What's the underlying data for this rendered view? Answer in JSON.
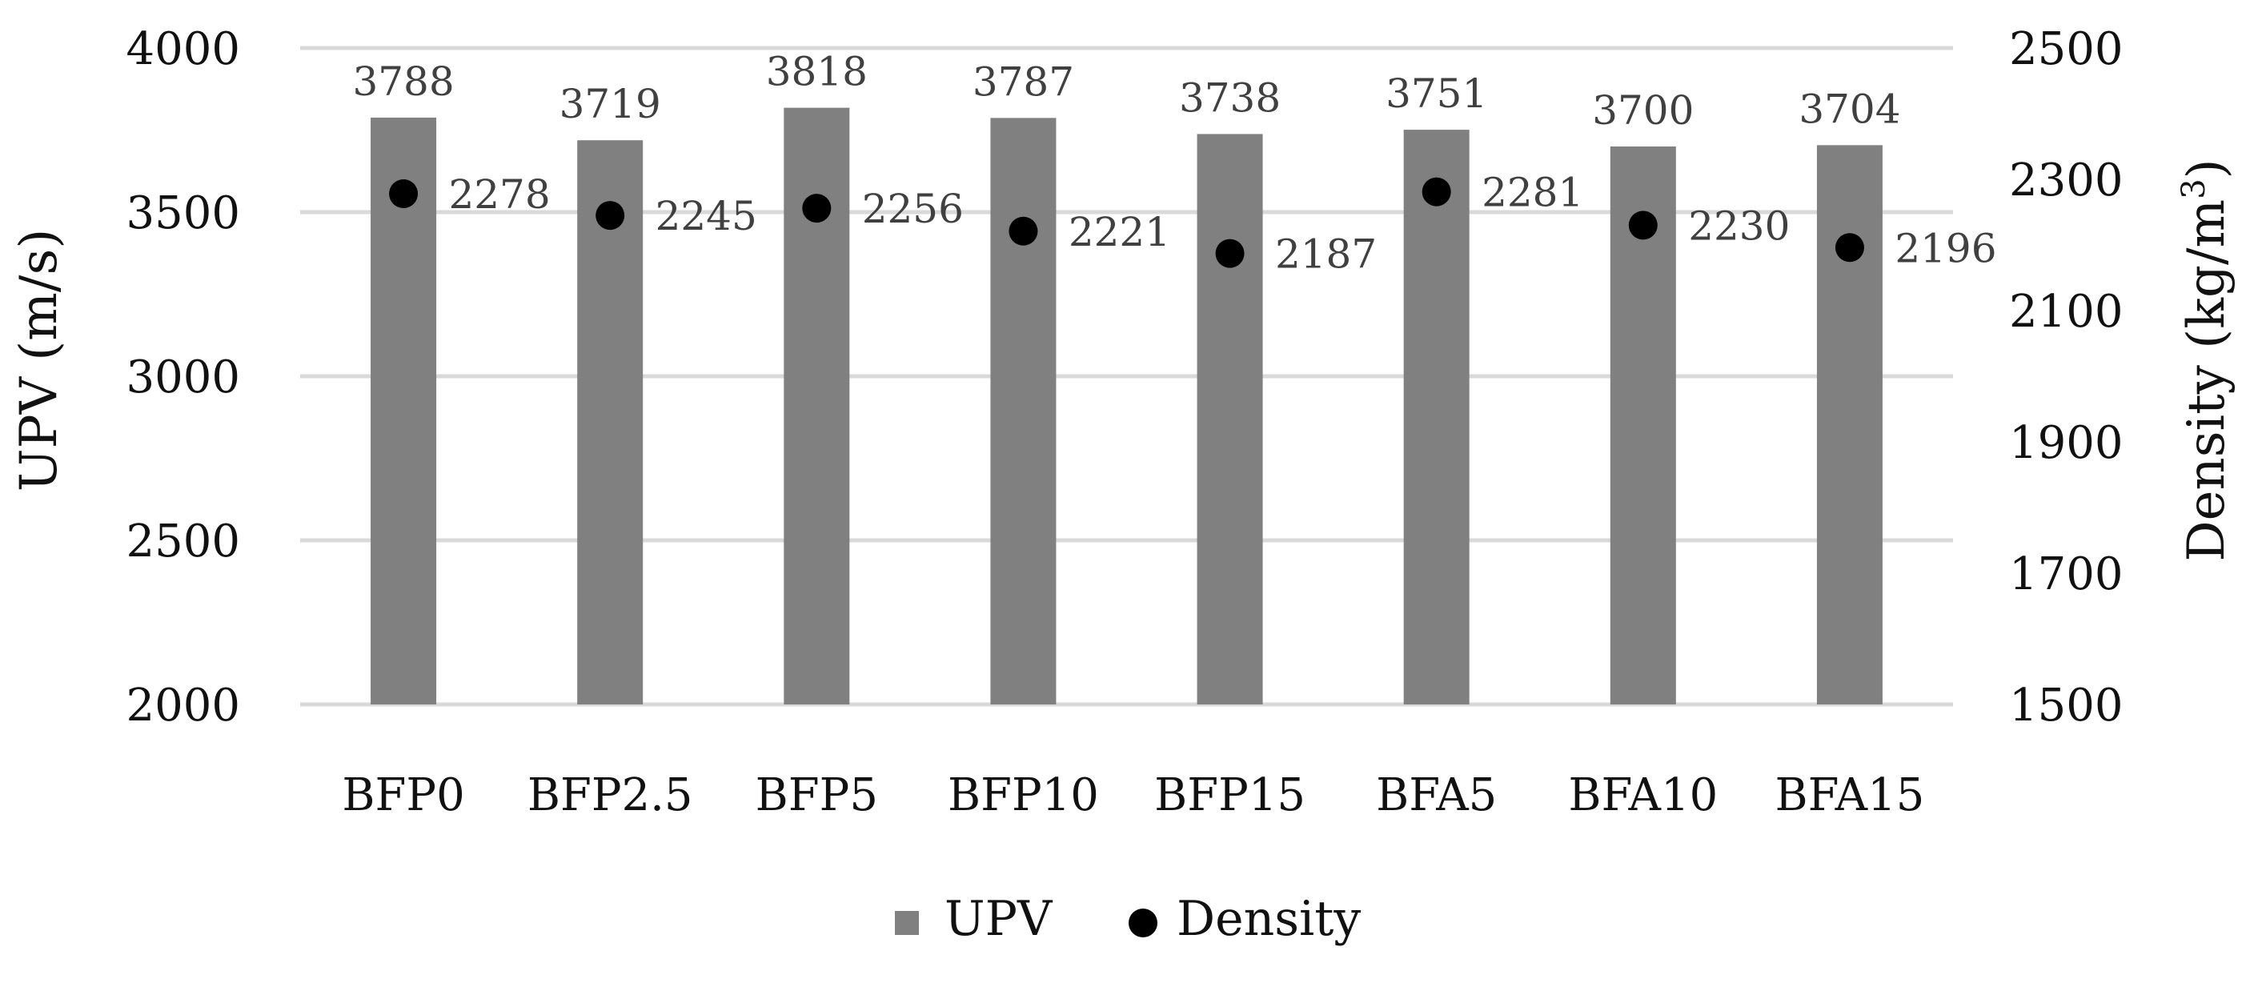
{
  "chart_data": {
    "type": "bar",
    "categories": [
      "BFP0",
      "BFP2.5",
      "BFP5",
      "BFP10",
      "BFP15",
      "BFA5",
      "BFA10",
      "BFA15"
    ],
    "series": [
      {
        "name": "UPV",
        "kind": "bar",
        "axis": "left",
        "color": "#808080",
        "values": [
          3788,
          3719,
          3818,
          3787,
          3738,
          3751,
          3700,
          3704
        ],
        "labels": [
          "3788",
          "3719",
          "3818",
          "3787",
          "3738",
          "3751",
          "3700",
          "3704"
        ]
      },
      {
        "name": "Density",
        "kind": "scatter",
        "axis": "right",
        "color": "#000000",
        "values": [
          2278,
          2245,
          2256,
          2221,
          2187,
          2281,
          2230,
          2196
        ],
        "labels": [
          "2278",
          "2245",
          "2256",
          "2221",
          "2187",
          "2281",
          "2230",
          "2196"
        ]
      }
    ],
    "y_left": {
      "label": "UPV (m/s)",
      "lim": [
        2000,
        4000
      ],
      "ticks": [
        "2000",
        "2500",
        "3000",
        "3500",
        "4000"
      ]
    },
    "y_right": {
      "label_main": "Density (kg/m",
      "label_sup": "3",
      "label_end": ")",
      "lim": [
        1500,
        2500
      ],
      "ticks": [
        "1500",
        "1700",
        "1900",
        "2100",
        "2300",
        "2500"
      ]
    },
    "grid": true,
    "grid_color": "#d9d9d9",
    "legend_position": "bottom"
  }
}
